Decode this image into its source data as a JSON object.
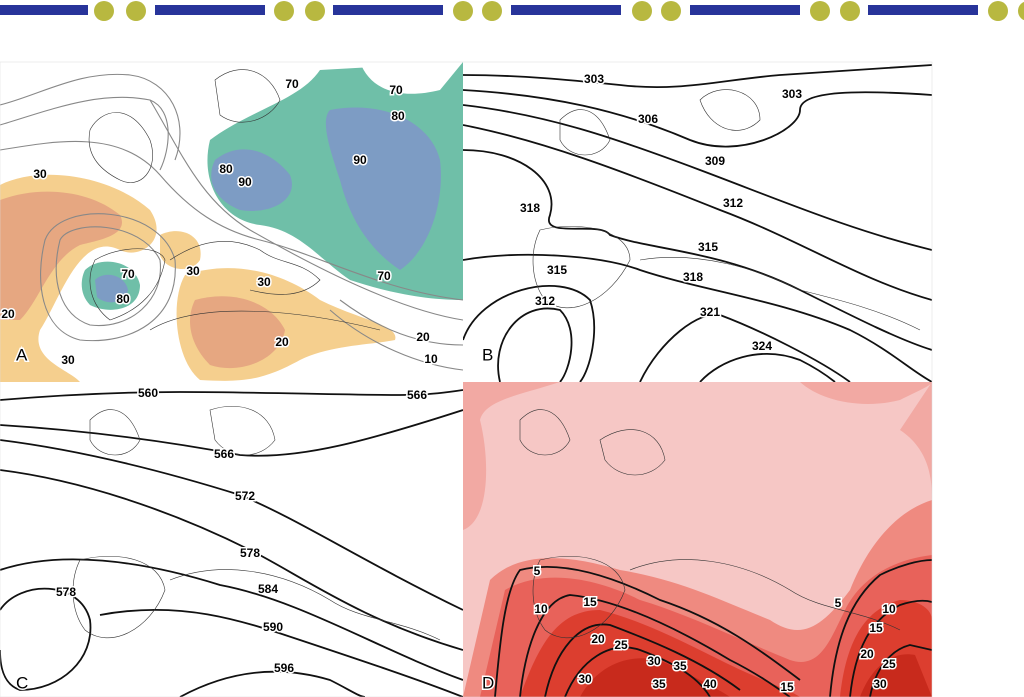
{
  "panels": [
    {
      "letter": "A",
      "contour_labels": [
        70,
        70,
        80,
        90,
        80,
        90,
        30,
        70,
        80,
        30,
        30,
        70,
        20,
        20,
        20,
        10,
        30
      ]
    },
    {
      "letter": "B",
      "contour_labels": [
        303,
        303,
        306,
        309,
        312,
        318,
        315,
        318,
        315,
        312,
        321,
        324
      ]
    },
    {
      "letter": "C",
      "contour_labels": [
        560,
        566,
        566,
        572,
        578,
        584,
        578,
        590,
        596
      ]
    },
    {
      "letter": "D",
      "contour_labels": [
        5,
        10,
        15,
        20,
        25,
        30,
        35,
        30,
        35,
        40,
        15,
        5,
        10,
        15,
        20,
        25,
        30
      ]
    }
  ]
}
